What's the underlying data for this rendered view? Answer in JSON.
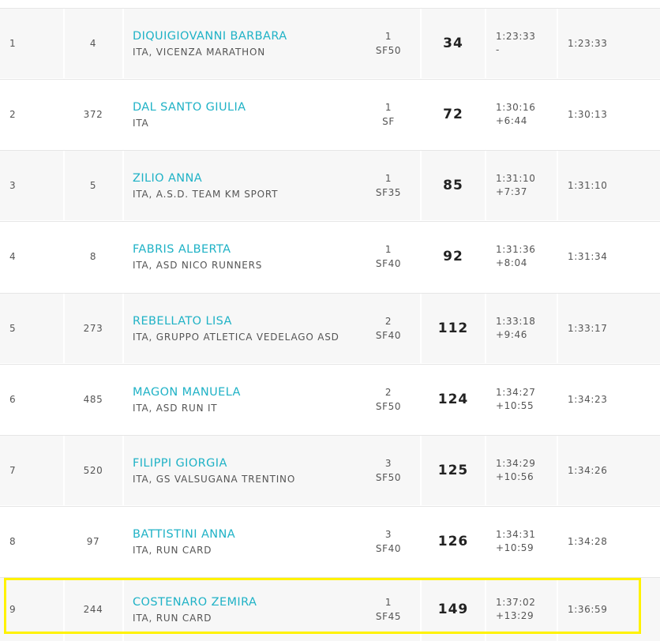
{
  "colors": {
    "name_link": "#1fb2c6",
    "highlight": "#fff200",
    "row_alt_bg": "#f7f7f7"
  },
  "rows": [
    {
      "pos": "1",
      "bib": "4",
      "name": "DIQUIGIOVANNI BARBARA",
      "club": "ITA, VICENZA MARATHON",
      "cat_rank": "1",
      "cat": "SF50",
      "points": "34",
      "time": "1:23:33",
      "gap": "-",
      "real_time": "1:23:33"
    },
    {
      "pos": "2",
      "bib": "372",
      "name": "DAL SANTO GIULIA",
      "club": "ITA",
      "cat_rank": "1",
      "cat": "SF",
      "points": "72",
      "time": "1:30:16",
      "gap": "+6:44",
      "real_time": "1:30:13"
    },
    {
      "pos": "3",
      "bib": "5",
      "name": "ZILIO ANNA",
      "club": "ITA, A.S.D. TEAM KM SPORT",
      "cat_rank": "1",
      "cat": "SF35",
      "points": "85",
      "time": "1:31:10",
      "gap": "+7:37",
      "real_time": "1:31:10"
    },
    {
      "pos": "4",
      "bib": "8",
      "name": "FABRIS ALBERTA",
      "club": "ITA, ASD NICO RUNNERS",
      "cat_rank": "1",
      "cat": "SF40",
      "points": "92",
      "time": "1:31:36",
      "gap": "+8:04",
      "real_time": "1:31:34"
    },
    {
      "pos": "5",
      "bib": "273",
      "name": "REBELLATO LISA",
      "club": "ITA, GRUPPO ATLETICA VEDELAGO ASD",
      "cat_rank": "2",
      "cat": "SF40",
      "points": "112",
      "time": "1:33:18",
      "gap": "+9:46",
      "real_time": "1:33:17"
    },
    {
      "pos": "6",
      "bib": "485",
      "name": "MAGON MANUELA",
      "club": "ITA, ASD RUN IT",
      "cat_rank": "2",
      "cat": "SF50",
      "points": "124",
      "time": "1:34:27",
      "gap": "+10:55",
      "real_time": "1:34:23"
    },
    {
      "pos": "7",
      "bib": "520",
      "name": "FILIPPI GIORGIA",
      "club": "ITA, GS VALSUGANA TRENTINO",
      "cat_rank": "3",
      "cat": "SF50",
      "points": "125",
      "time": "1:34:29",
      "gap": "+10:56",
      "real_time": "1:34:26"
    },
    {
      "pos": "8",
      "bib": "97",
      "name": "BATTISTINI ANNA",
      "club": "ITA, RUN CARD",
      "cat_rank": "3",
      "cat": "SF40",
      "points": "126",
      "time": "1:34:31",
      "gap": "+10:59",
      "real_time": "1:34:28"
    },
    {
      "pos": "9",
      "bib": "244",
      "name": "COSTENARO ZEMIRA",
      "club": "ITA, RUN CARD",
      "cat_rank": "1",
      "cat": "SF45",
      "points": "149",
      "time": "1:37:02",
      "gap": "+13:29",
      "real_time": "1:36:59"
    }
  ]
}
